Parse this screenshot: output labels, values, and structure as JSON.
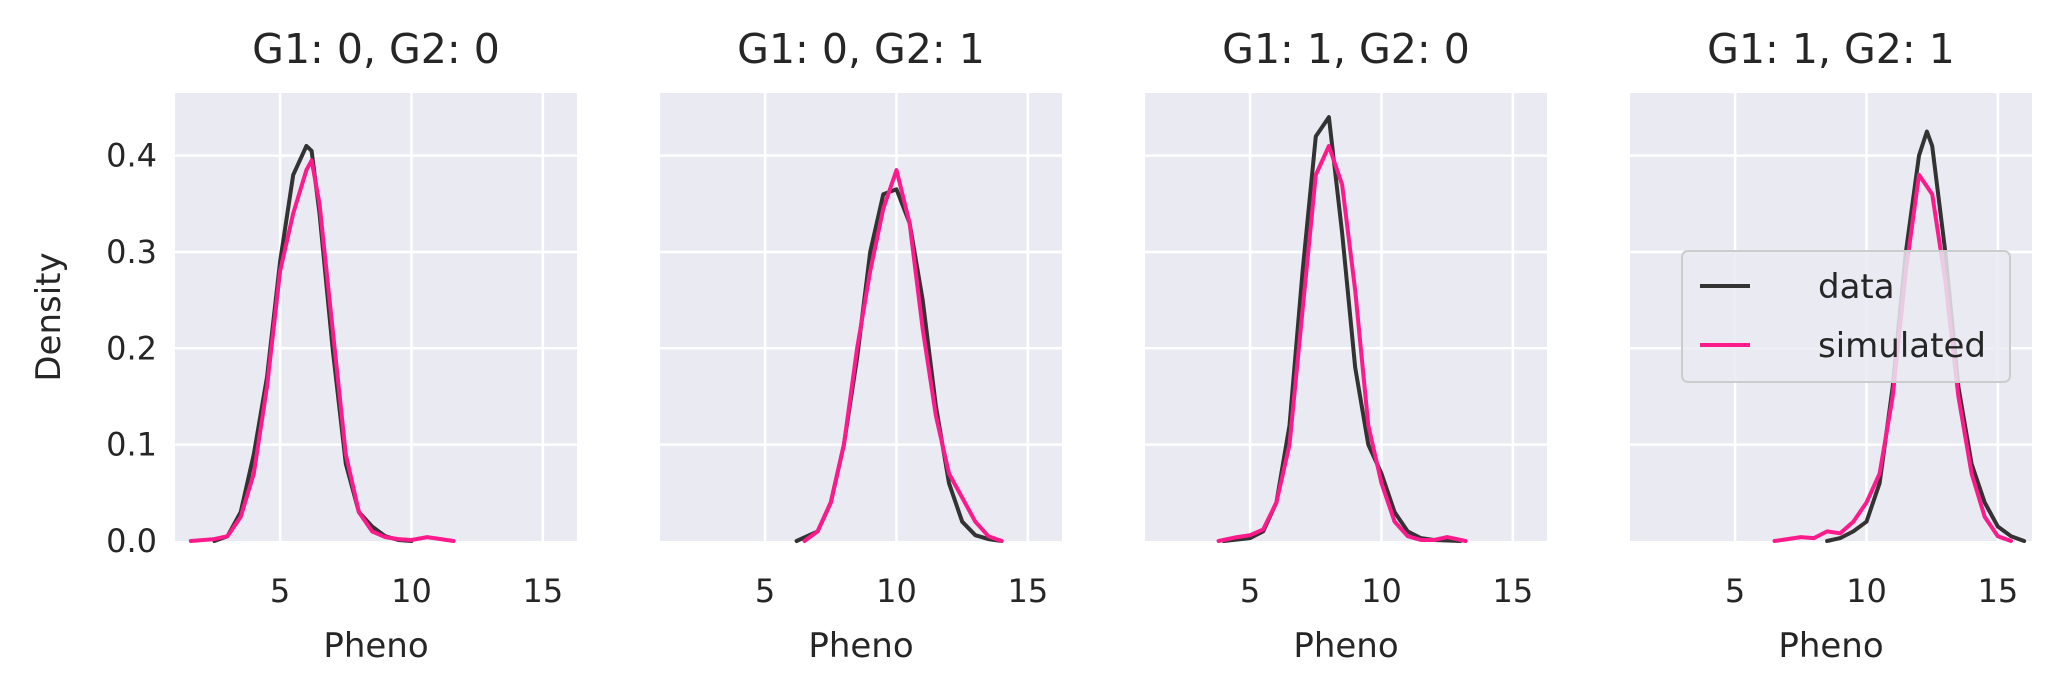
{
  "colors": {
    "background": "#eaeaf2",
    "grid": "#ffffff",
    "data": "#333333",
    "simulated": "#ff1a8c",
    "text": "#262626"
  },
  "legend": {
    "data_label": "data",
    "simulated_label": "simulated",
    "placement": "right, last panel"
  },
  "chart_data": [
    {
      "type": "line",
      "title": "G1: 0, G2: 0",
      "xlabel": "Pheno",
      "ylabel": "Density",
      "xlim": [
        1.0,
        16.3
      ],
      "ylim": [
        0,
        0.465
      ],
      "xticks": [
        5,
        10,
        15
      ],
      "yticks": [
        0.0,
        0.1,
        0.2,
        0.3,
        0.4
      ],
      "ytick_labels": [
        "0.0",
        "0.1",
        "0.2",
        "0.3",
        "0.4"
      ],
      "grid": true,
      "series": [
        {
          "name": "data",
          "x": [
            2.5,
            3.0,
            3.5,
            4.0,
            4.5,
            5.0,
            5.5,
            6.0,
            6.2,
            6.5,
            7.0,
            7.5,
            8.0,
            8.5,
            9.0,
            9.5,
            10.0
          ],
          "y": [
            0.0,
            0.005,
            0.03,
            0.09,
            0.17,
            0.29,
            0.38,
            0.41,
            0.405,
            0.34,
            0.2,
            0.08,
            0.03,
            0.015,
            0.005,
            0.001,
            0.0
          ]
        },
        {
          "name": "simulated",
          "x": [
            1.6,
            2.5,
            3.0,
            3.5,
            4.0,
            4.5,
            5.0,
            5.5,
            6.0,
            6.2,
            6.5,
            7.0,
            7.5,
            8.0,
            8.5,
            9.0,
            9.5,
            10.0,
            10.6,
            11.6
          ],
          "y": [
            0.0,
            0.002,
            0.005,
            0.025,
            0.07,
            0.16,
            0.28,
            0.34,
            0.385,
            0.395,
            0.35,
            0.22,
            0.09,
            0.03,
            0.01,
            0.004,
            0.002,
            0.001,
            0.004,
            0.0
          ]
        }
      ]
    },
    {
      "type": "line",
      "title": "G1: 0, G2: 1",
      "xlabel": "Pheno",
      "ylabel": "",
      "xlim": [
        1.0,
        16.3
      ],
      "ylim": [
        0,
        0.465
      ],
      "xticks": [
        5,
        10,
        15
      ],
      "grid": true,
      "series": [
        {
          "name": "data",
          "x": [
            6.2,
            7.0,
            7.5,
            8.0,
            8.5,
            9.0,
            9.5,
            10.0,
            10.5,
            11.0,
            11.5,
            12.0,
            12.5,
            13.0,
            13.5,
            14.0
          ],
          "y": [
            0.0,
            0.01,
            0.04,
            0.1,
            0.19,
            0.3,
            0.36,
            0.365,
            0.33,
            0.25,
            0.14,
            0.06,
            0.02,
            0.006,
            0.002,
            0.0
          ]
        },
        {
          "name": "simulated",
          "x": [
            6.5,
            7.0,
            7.5,
            8.0,
            8.5,
            9.0,
            9.5,
            10.0,
            10.5,
            11.0,
            11.5,
            12.0,
            12.5,
            13.0,
            13.5,
            14.0
          ],
          "y": [
            0.0,
            0.01,
            0.04,
            0.1,
            0.2,
            0.28,
            0.345,
            0.385,
            0.33,
            0.22,
            0.13,
            0.07,
            0.045,
            0.02,
            0.005,
            0.0
          ]
        }
      ]
    },
    {
      "type": "line",
      "title": "G1: 1, G2: 0",
      "xlabel": "Pheno",
      "ylabel": "",
      "xlim": [
        1.0,
        16.3
      ],
      "ylim": [
        0,
        0.465
      ],
      "xticks": [
        5,
        10,
        15
      ],
      "grid": true,
      "series": [
        {
          "name": "data",
          "x": [
            4.0,
            5.0,
            5.5,
            6.0,
            6.5,
            7.0,
            7.5,
            8.0,
            8.5,
            9.0,
            9.5,
            10.0,
            10.5,
            11.0,
            11.5,
            12.0,
            13.0
          ],
          "y": [
            0.0,
            0.003,
            0.01,
            0.04,
            0.12,
            0.28,
            0.42,
            0.44,
            0.32,
            0.18,
            0.1,
            0.07,
            0.03,
            0.01,
            0.003,
            0.001,
            0.0
          ]
        },
        {
          "name": "simulated",
          "x": [
            3.8,
            4.5,
            5.0,
            5.5,
            6.0,
            6.5,
            7.0,
            7.5,
            8.0,
            8.5,
            9.0,
            9.5,
            10.0,
            10.5,
            11.0,
            11.5,
            12.0,
            12.5,
            13.2
          ],
          "y": [
            0.0,
            0.004,
            0.006,
            0.012,
            0.04,
            0.1,
            0.24,
            0.38,
            0.41,
            0.37,
            0.26,
            0.12,
            0.06,
            0.02,
            0.005,
            0.001,
            0.001,
            0.004,
            0.0
          ]
        }
      ]
    },
    {
      "type": "line",
      "title": "G1: 1, G2: 1",
      "xlabel": "Pheno",
      "ylabel": "",
      "xlim": [
        1.0,
        16.3
      ],
      "ylim": [
        0,
        0.465
      ],
      "xticks": [
        5,
        10,
        15
      ],
      "grid": true,
      "legend": true,
      "series": [
        {
          "name": "data",
          "x": [
            8.5,
            9.0,
            9.5,
            10.0,
            10.5,
            11.0,
            11.5,
            12.0,
            12.3,
            12.5,
            13.0,
            13.5,
            14.0,
            14.5,
            15.0,
            15.5,
            16.0
          ],
          "y": [
            0.0,
            0.003,
            0.01,
            0.02,
            0.06,
            0.16,
            0.3,
            0.4,
            0.425,
            0.41,
            0.3,
            0.16,
            0.08,
            0.04,
            0.015,
            0.005,
            0.0
          ]
        },
        {
          "name": "simulated",
          "x": [
            6.5,
            7.0,
            7.5,
            8.0,
            8.5,
            9.0,
            9.5,
            10.0,
            10.5,
            11.0,
            11.5,
            12.0,
            12.5,
            13.0,
            13.5,
            14.0,
            14.5,
            15.0,
            15.5
          ],
          "y": [
            0.0,
            0.002,
            0.004,
            0.003,
            0.01,
            0.008,
            0.02,
            0.04,
            0.07,
            0.15,
            0.28,
            0.38,
            0.36,
            0.27,
            0.15,
            0.07,
            0.025,
            0.005,
            0.0
          ]
        }
      ]
    }
  ]
}
